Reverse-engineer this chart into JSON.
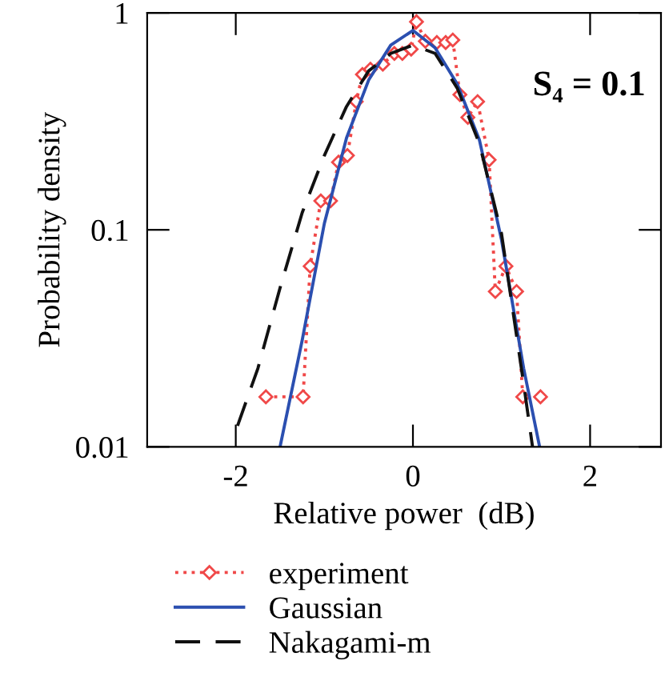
{
  "chart_data": {
    "type": "line",
    "xlabel": "Relative power  (dB)",
    "ylabel": "Probability density",
    "log": "y",
    "xlim": [
      -3,
      2.8
    ],
    "xticks": [
      -2,
      0,
      2
    ],
    "ylim": [
      0.01,
      1
    ],
    "yticks": [
      0.01,
      0.1,
      1
    ],
    "grid": false,
    "legend": "bottom",
    "annotations": [
      {
        "text": "S₄ = 0.1"
      }
    ],
    "series": [
      {
        "name": "experiment",
        "color": "#f04848",
        "marker": "diamond",
        "line_style": "dotted",
        "x": [
          -1.66,
          -1.24,
          -1.16,
          -1.04,
          -0.93,
          -0.84,
          -0.74,
          -0.64,
          -0.57,
          -0.48,
          -0.34,
          -0.21,
          -0.12,
          -0.02,
          0.04,
          0.14,
          0.27,
          0.37,
          0.45,
          0.53,
          0.62,
          0.73,
          0.86,
          0.93,
          1.05,
          1.17,
          1.24,
          1.44
        ],
        "values": [
          0.017,
          0.017,
          0.068,
          0.136,
          0.136,
          0.205,
          0.22,
          0.39,
          0.52,
          0.55,
          0.58,
          0.65,
          0.65,
          0.68,
          0.91,
          0.74,
          0.73,
          0.73,
          0.75,
          0.42,
          0.33,
          0.39,
          0.21,
          0.052,
          0.068,
          0.052,
          0.017,
          0.017
        ]
      },
      {
        "name": "Gaussian",
        "color": "#2b4fb0",
        "marker": "none",
        "line_style": "solid",
        "x": [
          -1.5,
          -1.25,
          -1.0,
          -0.75,
          -0.5,
          -0.25,
          0,
          0.25,
          0.5,
          0.75,
          1.0,
          1.25,
          1.43
        ],
        "values": [
          0.01,
          0.031,
          0.107,
          0.265,
          0.49,
          0.71,
          0.83,
          0.69,
          0.47,
          0.26,
          0.09,
          0.023,
          0.01
        ]
      },
      {
        "name": "Nakagami-m",
        "color": "#111111",
        "marker": "none",
        "line_style": "dashed",
        "x": [
          -1.98,
          -1.75,
          -1.5,
          -1.25,
          -1.0,
          -0.75,
          -0.5,
          -0.25,
          0,
          0.25,
          0.5,
          0.75,
          1.0,
          1.25,
          1.35
        ],
        "values": [
          0.0125,
          0.023,
          0.054,
          0.12,
          0.22,
          0.37,
          0.54,
          0.65,
          0.71,
          0.65,
          0.45,
          0.25,
          0.096,
          0.0195,
          0.01
        ]
      }
    ]
  }
}
